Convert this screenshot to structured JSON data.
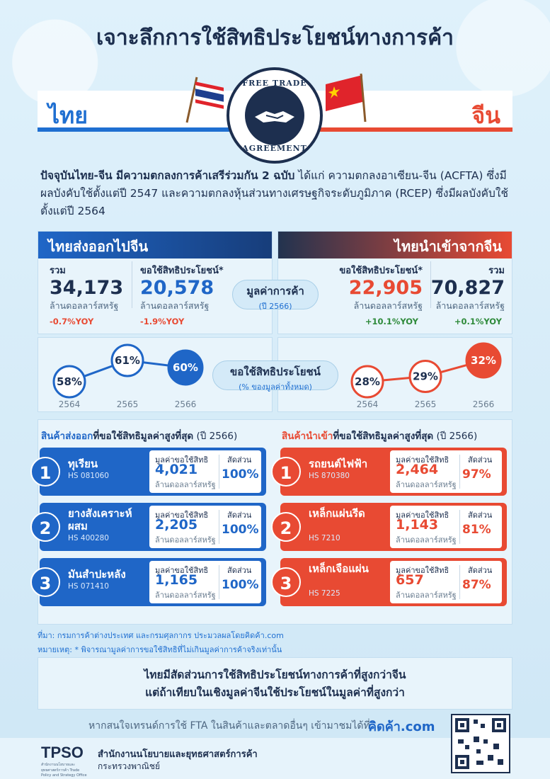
{
  "title": "เจาะลึกการใช้สิทธิประโยชน์ทางการค้า",
  "countries": {
    "left": "ไทย",
    "right": "จีน"
  },
  "seal": {
    "top": "FREE TRADE",
    "bottom": "AGREEMENT"
  },
  "intro": {
    "bold": "ปัจจุบันไทย-จีน มีความตกลงการค้าเสรีร่วมกัน 2 ฉบับ",
    "rest": " ได้แก่ ความตกลงอาเซียน-จีน (ACFTA) ซึ่งมีผลบังคับใช้ตั้งแต่ปี 2547 และความตกลงหุ้นส่วนทางเศรษฐกิจระดับภูมิภาค (RCEP) ซึ่งมีผลบังคับใช้ตั้งแต่ปี 2564"
  },
  "export": {
    "header": "ไทยส่งออกไปจีน",
    "total_label": "รวม",
    "total": "34,173",
    "total_unit": "ล้านดอลลาร์สหรัฐ",
    "total_yoy": "-0.7%YOY",
    "claim_label": "ขอใช้สิทธิประโยชน์*",
    "claim": "20,578",
    "claim_unit": "ล้านดอลลาร์สหรัฐ",
    "claim_yoy": "-1.9%YOY"
  },
  "import": {
    "header": "ไทยนำเข้าจากจีน",
    "total_label": "รวม",
    "total": "70,827",
    "total_unit": "ล้านดอลลาร์สหรัฐ",
    "total_yoy": "+0.1%YOY",
    "claim_label": "ขอใช้สิทธิประโยชน์*",
    "claim": "22,905",
    "claim_unit": "ล้านดอลลาร์สหรัฐ",
    "claim_yoy": "+10.1%YOY"
  },
  "trade_value_pill": {
    "line1": "มูลค่าการค้า",
    "line2": "(ปี 2566)"
  },
  "pct_pill": {
    "line1": "ขอใช้สิทธิประโยชน์",
    "line2": "(% ของมูลค่าทั้งหมด)"
  },
  "chart_data": [
    {
      "type": "line",
      "x": [
        "2564",
        "2565",
        "2566"
      ],
      "series": [
        {
          "values": [
            58,
            61,
            60
          ]
        }
      ],
      "labels": [
        "58%",
        "61%",
        "60%"
      ],
      "color": "#1f66c7"
    },
    {
      "type": "line",
      "x": [
        "2564",
        "2565",
        "2566"
      ],
      "series": [
        {
          "values": [
            28,
            29,
            32
          ]
        }
      ],
      "labels": [
        "28%",
        "29%",
        "32%"
      ],
      "color": "#e84a33"
    }
  ],
  "exp_products": {
    "title_a": "สินค้าส่งออก",
    "title_b": "ที่ขอใช้สิทธิมูลค่าสูงที่สุด",
    "title_c": " (ปี 2566)",
    "value_label": "มูลค่าขอใช้สิทธิ",
    "unit": "ล้านดอลลาร์สหรัฐ",
    "share_label": "สัดส่วน",
    "items": [
      {
        "rank": "1",
        "name": "ทุเรียน",
        "hs": "HS 081060",
        "value": "4,021",
        "share": "100%"
      },
      {
        "rank": "2",
        "name": "ยางสังเคราะห์ผสม",
        "hs": "HS 400280",
        "value": "2,205",
        "share": "100%"
      },
      {
        "rank": "3",
        "name": "มันสำปะหลัง",
        "hs": "HS 071410",
        "value": "1,165",
        "share": "100%"
      }
    ]
  },
  "imp_products": {
    "title_a": "สินค้านำเข้า",
    "title_b": "ที่ขอใช้สิทธิมูลค่าสูงที่สุด",
    "title_c": " (ปี 2566)",
    "value_label": "มูลค่าขอใช้สิทธิ",
    "unit": "ล้านดอลลาร์สหรัฐ",
    "share_label": "สัดส่วน",
    "items": [
      {
        "rank": "1",
        "name": "รถยนต์ไฟฟ้า",
        "hs": "HS 870380",
        "value": "2,464",
        "share": "97%"
      },
      {
        "rank": "2",
        "name": "เหล็กแผ่นรีด",
        "hs": "HS 7210",
        "value": "1,143",
        "share": "81%"
      },
      {
        "rank": "3",
        "name": "เหล็กเจือแผ่น",
        "hs": "HS 7225",
        "value": "657",
        "share": "87%"
      }
    ]
  },
  "source": "ที่มา: กรมการค้าต่างประเทศ และกรมศุลกากร ประมวลผลโดยคิดค้า.com",
  "note": "หมายเหตุ: * พิจารณามูลค่าการขอใช้สิทธิที่ไม่เกินมูลค่าการค้าจริงเท่านั้น",
  "conclusion": {
    "line1": "ไทยมีสัดส่วนการใช้สิทธิประโยชน์ทางการค้าที่สูงกว่าจีน",
    "line2": "แต่ถ้าเทียบในเชิงมูลค่าจีนใช้ประโยชน์ในมูลค่าที่สูงกว่า"
  },
  "more": "หากสนใจเทรนด์การใช้ FTA ในสินค้าและตลาดอื่นๆ เข้ามาชมได้ที่",
  "kidkha": "คิดค้า.com",
  "org": {
    "logo": "TPSO",
    "logo_sub": "สำนักงานนโยบายและยุทธศาสตร์การค้า Trade Policy and Strategy Office",
    "name": "สำนักงานนโยบายและยุทธศาสตร์การค้า",
    "ministry": "กระทรวงพาณิชย์"
  },
  "colors": {
    "blue": "#1f66c7",
    "red": "#e84a33",
    "navy": "#1d2f4f"
  }
}
